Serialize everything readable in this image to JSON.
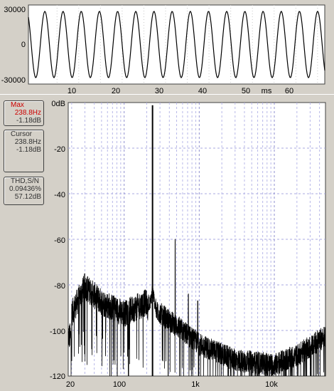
{
  "waveform": {
    "y_ticks": [
      "30000",
      "0",
      "-30000"
    ],
    "x_ticks": [
      "10",
      "20",
      "30",
      "40",
      "50",
      "60"
    ],
    "x_unit": "ms"
  },
  "readouts": {
    "max": {
      "label": "Max",
      "freq": "238.8Hz",
      "db": "-1.18dB",
      "color": "#cc0000"
    },
    "cursor": {
      "label": "Cursor",
      "freq": "238.8Hz",
      "db": "-1.18dB"
    },
    "thd": {
      "label": "THD,S/N",
      "thd": "0.09436%",
      "sn": "57.12dB"
    }
  },
  "spectrum": {
    "y_ticks": [
      "0dB",
      "-20",
      "-40",
      "-60",
      "-80",
      "-100",
      "-120"
    ],
    "x_ticks": [
      "20",
      "100",
      "1k",
      "10k"
    ]
  },
  "chart_data": [
    {
      "type": "line",
      "x_unit": "ms",
      "xlim": [
        0,
        69
      ],
      "ylim": [
        -32768,
        32767
      ],
      "series": [
        {
          "frequency_hz": 238.8,
          "amplitude": 28500
        }
      ]
    },
    {
      "type": "line",
      "xscale": "log",
      "xlim": [
        18,
        48000
      ],
      "ylim": [
        -120,
        0
      ],
      "series": [
        {
          "peaks": [
            {
              "x": 238.8,
              "y": -1.18
            },
            {
              "x": 477.6,
              "y": -60
            },
            {
              "x": 716.4,
              "y": -84
            },
            {
              "x": 955.2,
              "y": -87
            }
          ],
          "noise_floor": [
            {
              "x": 20,
              "y": -95
            },
            {
              "x": 30,
              "y": -83
            },
            {
              "x": 50,
              "y": -90
            },
            {
              "x": 100,
              "y": -95
            },
            {
              "x": 200,
              "y": -90
            },
            {
              "x": 500,
              "y": -100
            },
            {
              "x": 1000,
              "y": -108
            },
            {
              "x": 3000,
              "y": -115
            },
            {
              "x": 10000,
              "y": -117
            },
            {
              "x": 20000,
              "y": -113
            },
            {
              "x": 45000,
              "y": -105
            }
          ]
        }
      ]
    }
  ]
}
